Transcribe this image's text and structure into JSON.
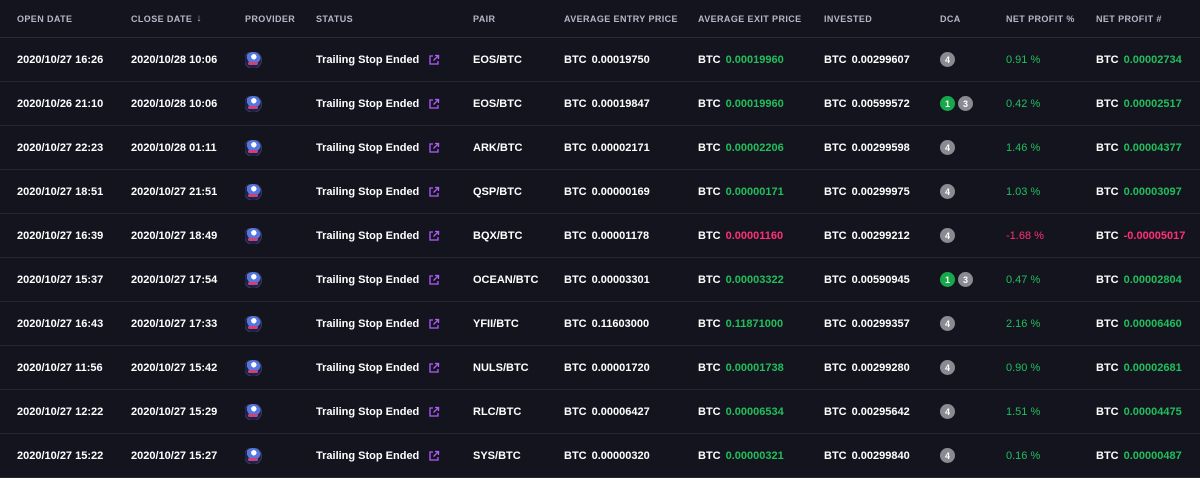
{
  "headers": {
    "open_date": "OPEN DATE",
    "close_date": "CLOSE DATE",
    "provider": "PROVIDER",
    "status": "STATUS",
    "pair": "PAIR",
    "avg_entry": "AVERAGE ENTRY PRICE",
    "avg_exit": "AVERAGE EXIT PRICE",
    "invested": "INVESTED",
    "dca": "DCA",
    "net_profit_pct": "NET PROFIT %",
    "net_profit_num": "NET PROFIT #"
  },
  "icons": {
    "sort": "arrow-down-icon",
    "provider": "provider-avatar-icon",
    "external": "external-link-icon"
  },
  "colors": {
    "positive": "#1fbf5b",
    "negative": "#ff2e78",
    "status_icon": "#b05cff",
    "background": "#14141f"
  },
  "currency": "BTC",
  "rows": [
    {
      "open": "2020/10/27 16:26",
      "close": "2020/10/28 10:06",
      "status": "Trailing Stop Ended",
      "pair": "EOS/BTC",
      "entry": "0.00019750",
      "exit": "0.00019960",
      "exit_dir": "up",
      "invested": "0.00299607",
      "dca": [
        {
          "v": "4",
          "c": "grey"
        }
      ],
      "npp": "0.91 %",
      "npn": "0.00002734",
      "np_dir": "up"
    },
    {
      "open": "2020/10/26 21:10",
      "close": "2020/10/28 10:06",
      "status": "Trailing Stop Ended",
      "pair": "EOS/BTC",
      "entry": "0.00019847",
      "exit": "0.00019960",
      "exit_dir": "up",
      "invested": "0.00599572",
      "dca": [
        {
          "v": "1",
          "c": "green"
        },
        {
          "v": "3",
          "c": "grey"
        }
      ],
      "npp": "0.42 %",
      "npn": "0.00002517",
      "np_dir": "up"
    },
    {
      "open": "2020/10/27 22:23",
      "close": "2020/10/28 01:11",
      "status": "Trailing Stop Ended",
      "pair": "ARK/BTC",
      "entry": "0.00002171",
      "exit": "0.00002206",
      "exit_dir": "up",
      "invested": "0.00299598",
      "dca": [
        {
          "v": "4",
          "c": "grey"
        }
      ],
      "npp": "1.46 %",
      "npn": "0.00004377",
      "np_dir": "up"
    },
    {
      "open": "2020/10/27 18:51",
      "close": "2020/10/27 21:51",
      "status": "Trailing Stop Ended",
      "pair": "QSP/BTC",
      "entry": "0.00000169",
      "exit": "0.00000171",
      "exit_dir": "up",
      "invested": "0.00299975",
      "dca": [
        {
          "v": "4",
          "c": "grey"
        }
      ],
      "npp": "1.03 %",
      "npn": "0.00003097",
      "np_dir": "up"
    },
    {
      "open": "2020/10/27 16:39",
      "close": "2020/10/27 18:49",
      "status": "Trailing Stop Ended",
      "pair": "BQX/BTC",
      "entry": "0.00001178",
      "exit": "0.00001160",
      "exit_dir": "down",
      "invested": "0.00299212",
      "dca": [
        {
          "v": "4",
          "c": "grey"
        }
      ],
      "npp": "-1.68 %",
      "npn": "-0.00005017",
      "np_dir": "down"
    },
    {
      "open": "2020/10/27 15:37",
      "close": "2020/10/27 17:54",
      "status": "Trailing Stop Ended",
      "pair": "OCEAN/BTC",
      "entry": "0.00003301",
      "exit": "0.00003322",
      "exit_dir": "up",
      "invested": "0.00590945",
      "dca": [
        {
          "v": "1",
          "c": "green"
        },
        {
          "v": "3",
          "c": "grey"
        }
      ],
      "npp": "0.47 %",
      "npn": "0.00002804",
      "np_dir": "up"
    },
    {
      "open": "2020/10/27 16:43",
      "close": "2020/10/27 17:33",
      "status": "Trailing Stop Ended",
      "pair": "YFII/BTC",
      "entry": "0.11603000",
      "exit": "0.11871000",
      "exit_dir": "up",
      "invested": "0.00299357",
      "dca": [
        {
          "v": "4",
          "c": "grey"
        }
      ],
      "npp": "2.16 %",
      "npn": "0.00006460",
      "np_dir": "up"
    },
    {
      "open": "2020/10/27 11:56",
      "close": "2020/10/27 15:42",
      "status": "Trailing Stop Ended",
      "pair": "NULS/BTC",
      "entry": "0.00001720",
      "exit": "0.00001738",
      "exit_dir": "up",
      "invested": "0.00299280",
      "dca": [
        {
          "v": "4",
          "c": "grey"
        }
      ],
      "npp": "0.90 %",
      "npn": "0.00002681",
      "np_dir": "up"
    },
    {
      "open": "2020/10/27 12:22",
      "close": "2020/10/27 15:29",
      "status": "Trailing Stop Ended",
      "pair": "RLC/BTC",
      "entry": "0.00006427",
      "exit": "0.00006534",
      "exit_dir": "up",
      "invested": "0.00295642",
      "dca": [
        {
          "v": "4",
          "c": "grey"
        }
      ],
      "npp": "1.51 %",
      "npn": "0.00004475",
      "np_dir": "up"
    },
    {
      "open": "2020/10/27 15:22",
      "close": "2020/10/27 15:27",
      "status": "Trailing Stop Ended",
      "pair": "SYS/BTC",
      "entry": "0.00000320",
      "exit": "0.00000321",
      "exit_dir": "up",
      "invested": "0.00299840",
      "dca": [
        {
          "v": "4",
          "c": "grey"
        }
      ],
      "npp": "0.16 %",
      "npn": "0.00000487",
      "np_dir": "up"
    }
  ]
}
